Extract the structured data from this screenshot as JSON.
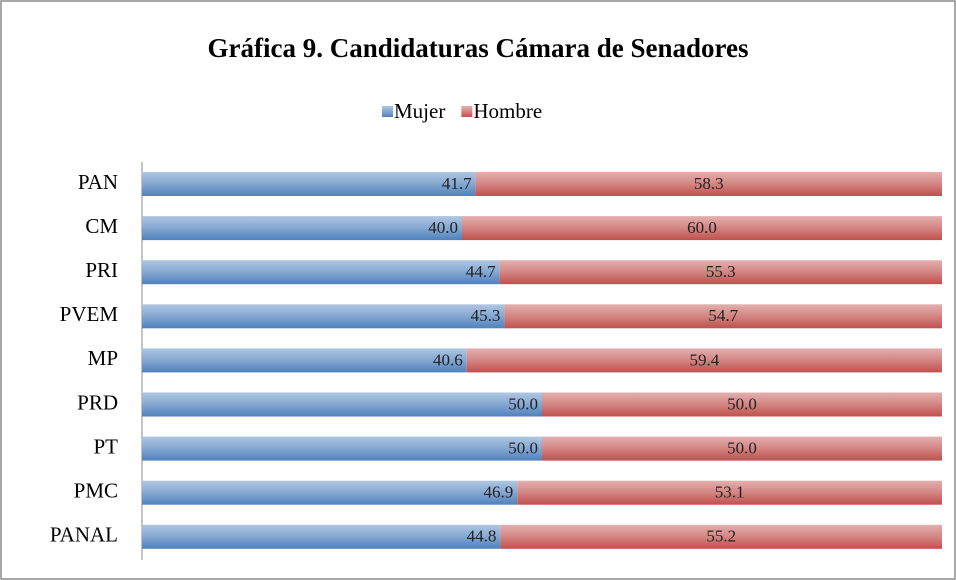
{
  "chart_data": {
    "type": "bar",
    "orientation": "horizontal",
    "stacked": true,
    "title": "Gráfica 9. Candidaturas Cámara de Senadores",
    "categories": [
      "PAN",
      "CM",
      "PRI",
      "PVEM",
      "MP",
      "PRD",
      "PT",
      "PMC",
      "PANAL"
    ],
    "series": [
      {
        "name": "Mujer",
        "color": "#4f81bd",
        "values": [
          41.7,
          40.0,
          44.7,
          45.3,
          40.6,
          50.0,
          50.0,
          46.9,
          44.8
        ],
        "value_labels": [
          "41.7",
          "40.0",
          "44.7",
          "45.3",
          "40.6",
          "50.0",
          "50.0",
          "46.9",
          "44.8"
        ]
      },
      {
        "name": "Hombre",
        "color": "#c0504d",
        "values": [
          58.3,
          60.0,
          55.3,
          54.7,
          59.4,
          50.0,
          50.0,
          53.1,
          55.2
        ],
        "value_labels": [
          "58.3",
          "60.0",
          "55.3",
          "54.7",
          "59.4",
          "50.0",
          "50.0",
          "53.1",
          "55.2"
        ]
      }
    ],
    "xlim": [
      0,
      100
    ],
    "legend": "top"
  }
}
